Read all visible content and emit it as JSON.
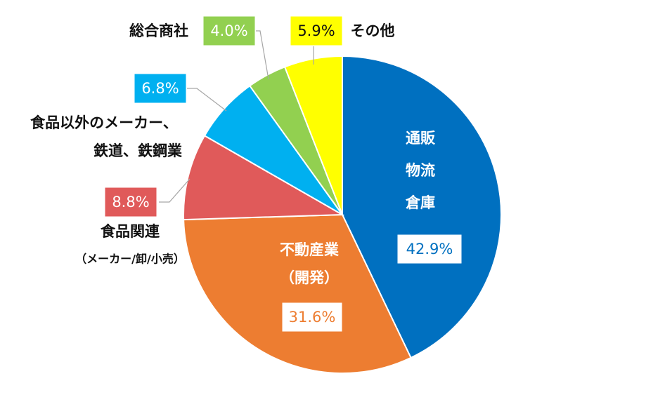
{
  "chart_data": {
    "type": "pie",
    "title": "",
    "slices": [
      {
        "label_lines": [
          "通販",
          "物流",
          "倉庫"
        ],
        "value": 42.9,
        "value_label": "42.9%",
        "color": "#0070C0"
      },
      {
        "label_lines": [
          "不動産業",
          "（開発）"
        ],
        "value": 31.6,
        "value_label": "31.6%",
        "color": "#ED7D31"
      },
      {
        "label_lines": [
          "食品関連",
          "（メーカー/卸/小売）"
        ],
        "value": 8.8,
        "value_label": "8.8%",
        "color": "#E05A5A"
      },
      {
        "label_lines": [
          "食品以外のメーカー、",
          "鉄道、鉄鋼業"
        ],
        "value": 6.8,
        "value_label": "6.8%",
        "color": "#00B0F0"
      },
      {
        "label_lines": [
          "総合商社"
        ],
        "value": 4.0,
        "value_label": "4.0%",
        "color": "#92D050"
      },
      {
        "label_lines": [
          "その他"
        ],
        "value": 5.9,
        "value_label": "5.9%",
        "color": "#FFFF00"
      }
    ],
    "start_angle": "12 o'clock",
    "direction": "clockwise",
    "legend": "none"
  }
}
